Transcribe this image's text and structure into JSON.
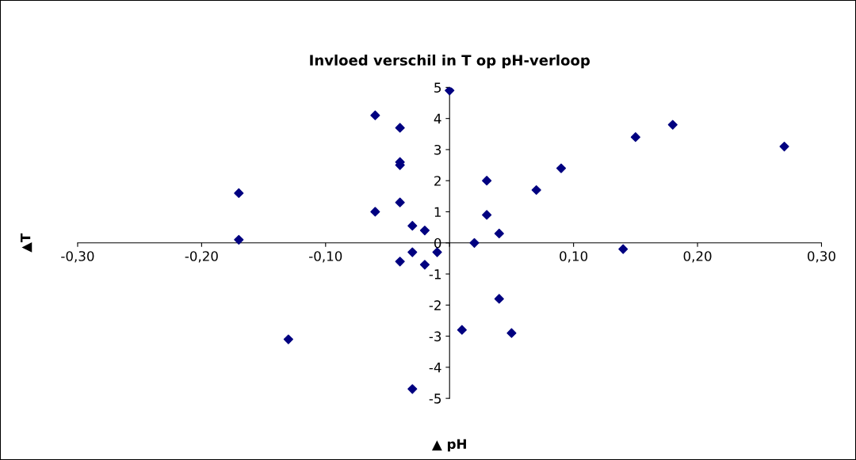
{
  "chart_data": {
    "type": "scatter",
    "title": "Invloed verschil in T op pH-verloop",
    "xlabel": "▲ pH",
    "ylabel": "▲T",
    "x": [
      0.0,
      -0.06,
      -0.04,
      -0.04,
      -0.04,
      -0.17,
      -0.06,
      -0.04,
      -0.03,
      -0.02,
      -0.01,
      -0.17,
      -0.04,
      -0.03,
      -0.02,
      -0.13,
      -0.03,
      0.01,
      0.02,
      0.03,
      0.03,
      0.04,
      0.04,
      0.05,
      0.07,
      0.09,
      0.14,
      0.15,
      0.18,
      0.27
    ],
    "series": [
      {
        "color": "#000080",
        "values": [
          4.9,
          4.1,
          3.7,
          2.6,
          2.5,
          1.6,
          1.0,
          1.3,
          0.55,
          0.4,
          -0.3,
          0.1,
          -0.6,
          -0.3,
          -0.7,
          -3.1,
          -4.7,
          -2.8,
          0.0,
          2.0,
          0.9,
          0.3,
          -1.8,
          -2.9,
          1.7,
          2.4,
          -0.2,
          3.4,
          3.8,
          3.1
        ]
      }
    ],
    "xlim": [
      -0.3,
      0.3
    ],
    "ylim": [
      -5,
      5
    ],
    "xticks": [
      {
        "value": -0.3,
        "label": "-0,30"
      },
      {
        "value": -0.2,
        "label": "-0,20"
      },
      {
        "value": -0.1,
        "label": "-0,10"
      },
      {
        "value": 0.0,
        "label": null
      },
      {
        "value": 0.1,
        "label": "0,10"
      },
      {
        "value": 0.2,
        "label": "0,20"
      },
      {
        "value": 0.3,
        "label": "0,30"
      }
    ],
    "yticks": [
      -5,
      -4,
      -3,
      -2,
      -1,
      0,
      1,
      2,
      3,
      4,
      5
    ],
    "marker": "diamond",
    "grid": false,
    "legend": false
  }
}
